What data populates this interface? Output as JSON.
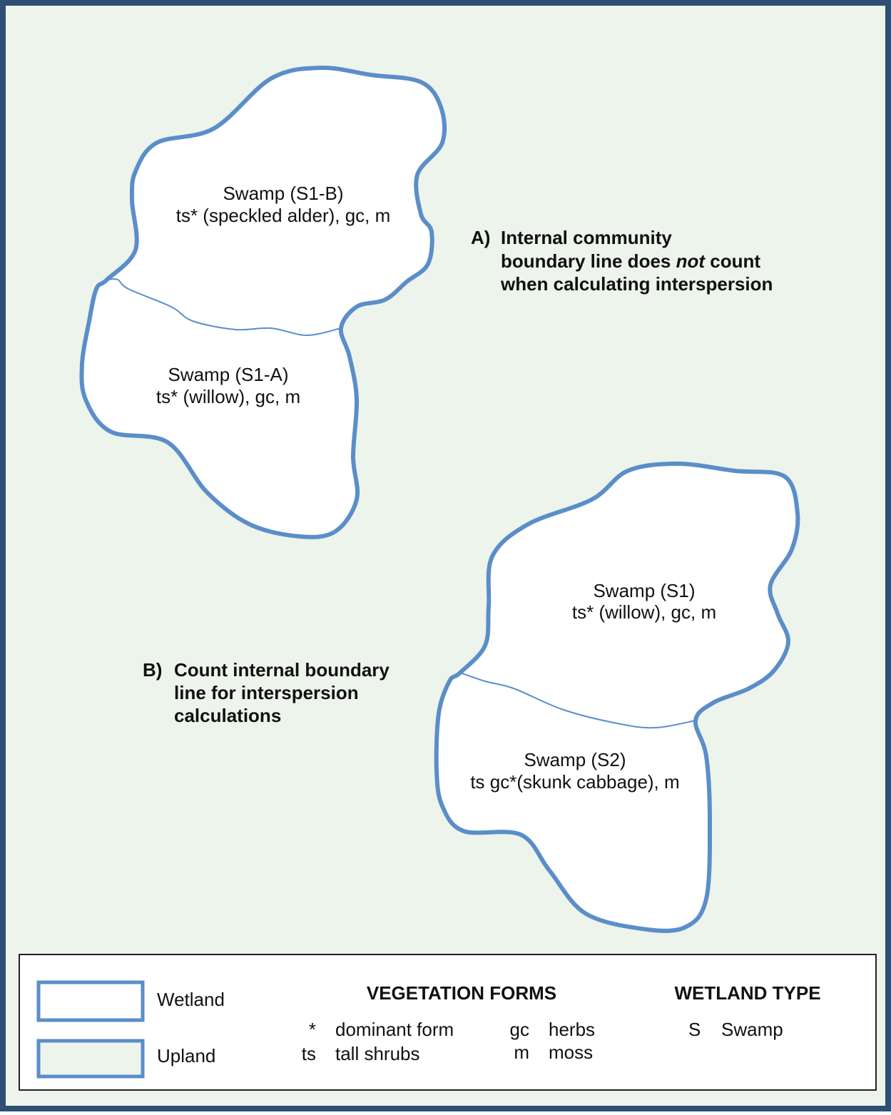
{
  "regions": [
    {
      "title": "Swamp (S1-B)",
      "detail": "ts* (speckled alder), gc, m"
    },
    {
      "title": "Swamp (S1-A)",
      "detail": "ts* (willow), gc, m"
    },
    {
      "title": "Swamp (S1)",
      "detail": "ts* (willow), gc, m"
    },
    {
      "title": "Swamp (S2)",
      "detail": "ts gc*(skunk cabbage), m"
    }
  ],
  "annotation_a": {
    "marker": "A)",
    "line1": "Internal community",
    "line2_before": "boundary line does ",
    "line2_em": "not",
    "line2_after": " count",
    "line3": "when calculating interspersion"
  },
  "annotation_b": {
    "marker": "B)",
    "line1": "Count internal boundary",
    "line2": "line for interspersion",
    "line3": "calculations"
  },
  "legend": {
    "swatches": [
      "Wetland",
      "Upland"
    ],
    "vegetation_heading": "VEGETATION FORMS",
    "vegetation": [
      {
        "code": "*",
        "name": "dominant form"
      },
      {
        "code": "ts",
        "name": "tall shrubs"
      },
      {
        "code": "gc",
        "name": "herbs"
      },
      {
        "code": "m",
        "name": "moss"
      }
    ],
    "type_heading": "WETLAND TYPE",
    "types": [
      {
        "code": "S",
        "name": "Swamp"
      }
    ]
  }
}
